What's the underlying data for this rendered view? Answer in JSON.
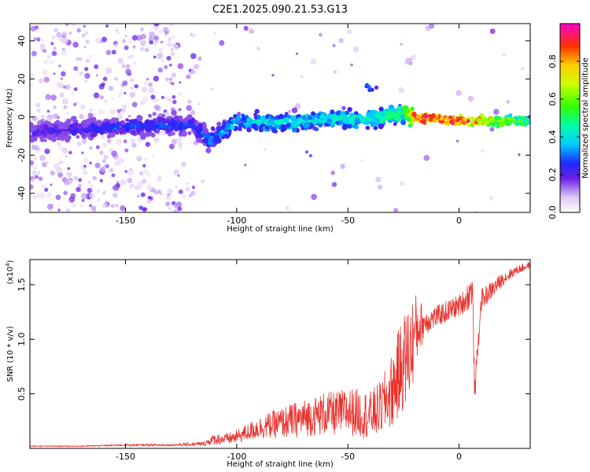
{
  "title": "C2E1.2025.090.21.53.G13",
  "chart_data": [
    {
      "type": "heatmap",
      "xlabel": "Height of straight line (km)",
      "ylabel": "Frequency (Hz)",
      "xlim": [
        -193,
        32
      ],
      "ylim": [
        -50,
        49
      ],
      "xticks": [
        "-150",
        "-100",
        "-50",
        "0"
      ],
      "yticks": [
        "-40",
        "-20",
        "0",
        "20",
        "40"
      ],
      "xtick_values": [
        -150,
        -100,
        -50,
        0
      ],
      "ytick_values": [
        -40,
        -20,
        0,
        20,
        40
      ],
      "grid": false,
      "colorbar": {
        "label": "Normalized spectral amplitude",
        "range": [
          0,
          1
        ],
        "ticks": [
          "0.0",
          "0.2",
          "0.4",
          "0.6",
          "0.8"
        ],
        "tick_values": [
          0.0,
          0.2,
          0.4,
          0.6,
          0.8
        ]
      },
      "ridge": {
        "x": [
          -193,
          -150,
          -120,
          -112,
          -100,
          -80,
          -60,
          -40,
          -25,
          -20,
          0,
          32
        ],
        "frequency": [
          -8,
          -5,
          -4,
          -12,
          -3,
          -3,
          -1,
          -1,
          2,
          0,
          -2,
          -2
        ],
        "amplitude": [
          0.25,
          0.3,
          0.3,
          0.35,
          0.4,
          0.45,
          0.45,
          0.5,
          0.55,
          0.9,
          0.95,
          0.5
        ]
      },
      "features": [
        {
          "x": -22,
          "frequency": 29,
          "amplitude": 0.1
        },
        {
          "x": -40,
          "frequency": 15,
          "amplitude": 0.25
        }
      ]
    },
    {
      "type": "line",
      "xlabel": "Height of straight line (km)",
      "ylabel": "SNR (10 * v/v)",
      "y_multiplier": "(x10",
      "y_multiplier_exp": "4",
      "y_multiplier_close": ")",
      "xlim": [
        -193,
        32
      ],
      "ylim": [
        0,
        1.73
      ],
      "xticks": [
        "-150",
        "-100",
        "-50",
        "0"
      ],
      "yticks": [
        "0.5",
        "1.0",
        "1.5"
      ],
      "xtick_values": [
        -150,
        -100,
        -50,
        0
      ],
      "ytick_values": [
        0.5,
        1.0,
        1.5
      ],
      "grid": false,
      "series": [
        {
          "color": "#e8302b",
          "x": [
            -193,
            -170,
            -150,
            -130,
            -115,
            -110,
            -105,
            -100,
            -95,
            -90,
            -85,
            -80,
            -75,
            -70,
            -65,
            -60,
            -55,
            -50,
            -45,
            -40,
            -35,
            -30,
            -28,
            -25,
            -22,
            -20,
            -18,
            -15,
            -10,
            -5,
            0,
            3,
            6,
            7,
            10,
            15,
            20,
            25,
            32
          ],
          "y": [
            0.02,
            0.02,
            0.03,
            0.03,
            0.04,
            0.08,
            0.08,
            0.1,
            0.14,
            0.18,
            0.2,
            0.22,
            0.24,
            0.26,
            0.28,
            0.3,
            0.3,
            0.32,
            0.3,
            0.28,
            0.35,
            0.5,
            0.6,
            0.75,
            0.85,
            1.0,
            1.1,
            1.15,
            1.2,
            1.25,
            1.3,
            1.35,
            1.45,
            0.5,
            1.35,
            1.45,
            1.55,
            1.62,
            1.68
          ],
          "noise": [
            0.005,
            0.005,
            0.01,
            0.01,
            0.02,
            0.05,
            0.05,
            0.06,
            0.08,
            0.1,
            0.12,
            0.14,
            0.16,
            0.17,
            0.18,
            0.2,
            0.2,
            0.22,
            0.22,
            0.22,
            0.25,
            0.35,
            0.4,
            0.45,
            0.45,
            0.4,
            0.25,
            0.12,
            0.1,
            0.1,
            0.1,
            0.12,
            0.15,
            0.1,
            0.1,
            0.08,
            0.06,
            0.04,
            0.03
          ]
        }
      ]
    }
  ]
}
